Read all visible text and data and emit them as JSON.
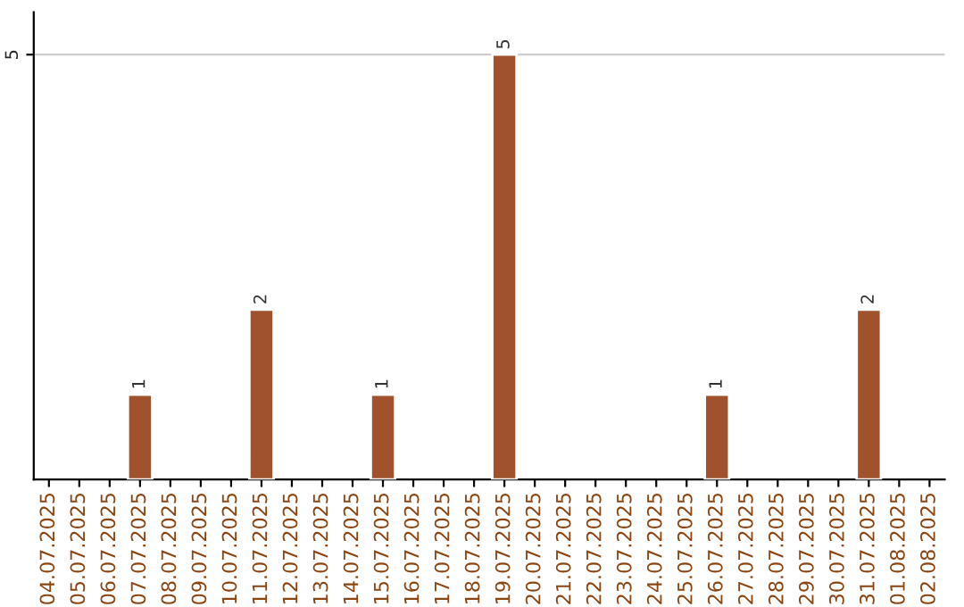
{
  "chart_data": {
    "type": "bar",
    "categories": [
      "04.07.2025",
      "05.07.2025",
      "06.07.2025",
      "07.07.2025",
      "08.07.2025",
      "09.07.2025",
      "10.07.2025",
      "11.07.2025",
      "12.07.2025",
      "13.07.2025",
      "14.07.2025",
      "15.07.2025",
      "16.07.2025",
      "17.07.2025",
      "18.07.2025",
      "19.07.2025",
      "20.07.2025",
      "21.07.2025",
      "22.07.2025",
      "23.07.2025",
      "24.07.2025",
      "25.07.2025",
      "26.07.2025",
      "27.07.2025",
      "28.07.2025",
      "29.07.2025",
      "30.07.2025",
      "31.07.2025",
      "01.08.2025",
      "02.08.2025"
    ],
    "values": [
      null,
      null,
      null,
      1,
      null,
      null,
      null,
      2,
      null,
      null,
      null,
      1,
      null,
      null,
      null,
      5,
      null,
      null,
      null,
      null,
      null,
      null,
      1,
      null,
      null,
      null,
      null,
      2,
      null,
      null
    ],
    "color": "#a0522d",
    "ylim": [
      0,
      5.5
    ],
    "yticks": [
      5
    ],
    "grid": "y",
    "data_labels": true
  }
}
